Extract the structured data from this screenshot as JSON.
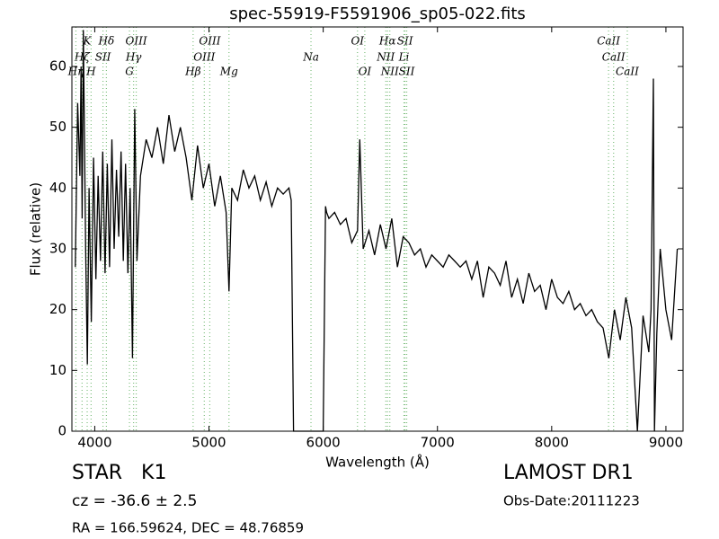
{
  "chart_data": {
    "type": "line",
    "title": "spec-55919-F5591906_sp05-022.fits",
    "x_label": "Wavelength (Å)",
    "y_label": "Flux (relative)",
    "xlim": [
      3800,
      9150
    ],
    "ylim": [
      0,
      66.5
    ],
    "xticks": [
      4000,
      5000,
      6000,
      7000,
      8000,
      9000
    ],
    "yticks": [
      0,
      10,
      20,
      30,
      40,
      50,
      60
    ],
    "color": "#000000",
    "line_color": "#7fbf7f",
    "x": [
      3830,
      3850,
      3870,
      3880,
      3890,
      3900,
      3920,
      3935,
      3950,
      3970,
      3990,
      4010,
      4030,
      4050,
      4070,
      4090,
      4110,
      4130,
      4150,
      4170,
      4190,
      4210,
      4230,
      4250,
      4270,
      4290,
      4310,
      4330,
      4350,
      4370,
      4400,
      4450,
      4500,
      4550,
      4600,
      4650,
      4700,
      4750,
      4800,
      4850,
      4900,
      4950,
      5000,
      5050,
      5100,
      5150,
      5175,
      5200,
      5250,
      5300,
      5350,
      5400,
      5450,
      5500,
      5550,
      5600,
      5650,
      5700,
      5720,
      5740,
      5800,
      5900,
      6000,
      6020,
      6030,
      6050,
      6100,
      6150,
      6200,
      6250,
      6300,
      6320,
      6350,
      6400,
      6450,
      6500,
      6550,
      6600,
      6650,
      6700,
      6750,
      6800,
      6850,
      6900,
      6950,
      7000,
      7050,
      7100,
      7150,
      7200,
      7250,
      7300,
      7350,
      7400,
      7450,
      7500,
      7550,
      7600,
      7650,
      7700,
      7750,
      7800,
      7850,
      7900,
      7950,
      8000,
      8050,
      8100,
      8150,
      8200,
      8250,
      8300,
      8350,
      8400,
      8450,
      8500,
      8550,
      8600,
      8650,
      8700,
      8750,
      8800,
      8850,
      8870,
      8890,
      8900,
      8920,
      8950,
      9000,
      9050,
      9100
    ],
    "values": [
      27,
      54,
      42,
      60,
      35,
      66,
      30,
      11,
      40,
      18,
      45,
      25,
      42,
      28,
      46,
      26,
      44,
      27,
      48,
      30,
      43,
      32,
      46,
      28,
      44,
      26,
      40,
      12,
      53,
      28,
      42,
      48,
      45,
      50,
      44,
      52,
      46,
      50,
      45,
      38,
      47,
      40,
      44,
      37,
      42,
      36,
      23,
      40,
      38,
      43,
      40,
      42,
      38,
      41,
      37,
      40,
      39,
      40,
      38,
      0,
      0,
      0,
      0,
      37,
      36,
      35,
      36,
      34,
      35,
      31,
      33,
      48,
      30,
      33,
      29,
      34,
      30,
      35,
      27,
      32,
      31,
      29,
      30,
      27,
      29,
      28,
      27,
      29,
      28,
      27,
      28,
      25,
      28,
      22,
      27,
      26,
      24,
      28,
      22,
      25,
      21,
      26,
      23,
      24,
      20,
      25,
      22,
      21,
      23,
      20,
      21,
      19,
      20,
      18,
      17,
      12,
      20,
      15,
      22,
      17,
      0,
      19,
      13,
      20,
      58,
      0,
      16,
      30,
      20,
      15,
      30
    ],
    "line_labels": [
      [
        {
          "label": "K",
          "x": 3934
        },
        {
          "label": "Hδ",
          "x": 4102
        },
        {
          "label": "OIII",
          "x": 4363
        },
        {
          "label": "OIII",
          "x": 5007
        },
        {
          "label": "OI",
          "x": 6300
        },
        {
          "label": "Hα",
          "x": 6563
        },
        {
          "label": "SII",
          "x": 6716
        },
        {
          "label": "CaII",
          "x": 8498
        }
      ],
      [
        {
          "label": "Hζ",
          "x": 3889
        },
        {
          "label": "SII",
          "x": 4072
        },
        {
          "label": "Hγ",
          "x": 4340
        },
        {
          "label": "OIII",
          "x": 4959
        },
        {
          "label": "Na",
          "x": 5893
        },
        {
          "label": "NII",
          "x": 6548
        },
        {
          "label": "Li",
          "x": 6707
        },
        {
          "label": "CaII",
          "x": 8542
        }
      ],
      [
        {
          "label": "Hη",
          "x": 3835
        },
        {
          "label": "H",
          "x": 3968
        },
        {
          "label": "G",
          "x": 4304
        },
        {
          "label": "Hβ",
          "x": 4861
        },
        {
          "label": "Mg",
          "x": 5175
        },
        {
          "label": "OI",
          "x": 6364
        },
        {
          "label": "NII",
          "x": 6583
        },
        {
          "label": "SII",
          "x": 6731
        },
        {
          "label": "CaII",
          "x": 8662
        }
      ]
    ]
  },
  "footer": {
    "object": "STAR   K1",
    "redshift": "cz = -36.6 ± 2.5",
    "coords": "RA = 166.59624, DEC = 48.76859",
    "survey": "LAMOST DR1",
    "date": "Obs-Date:20111223"
  }
}
